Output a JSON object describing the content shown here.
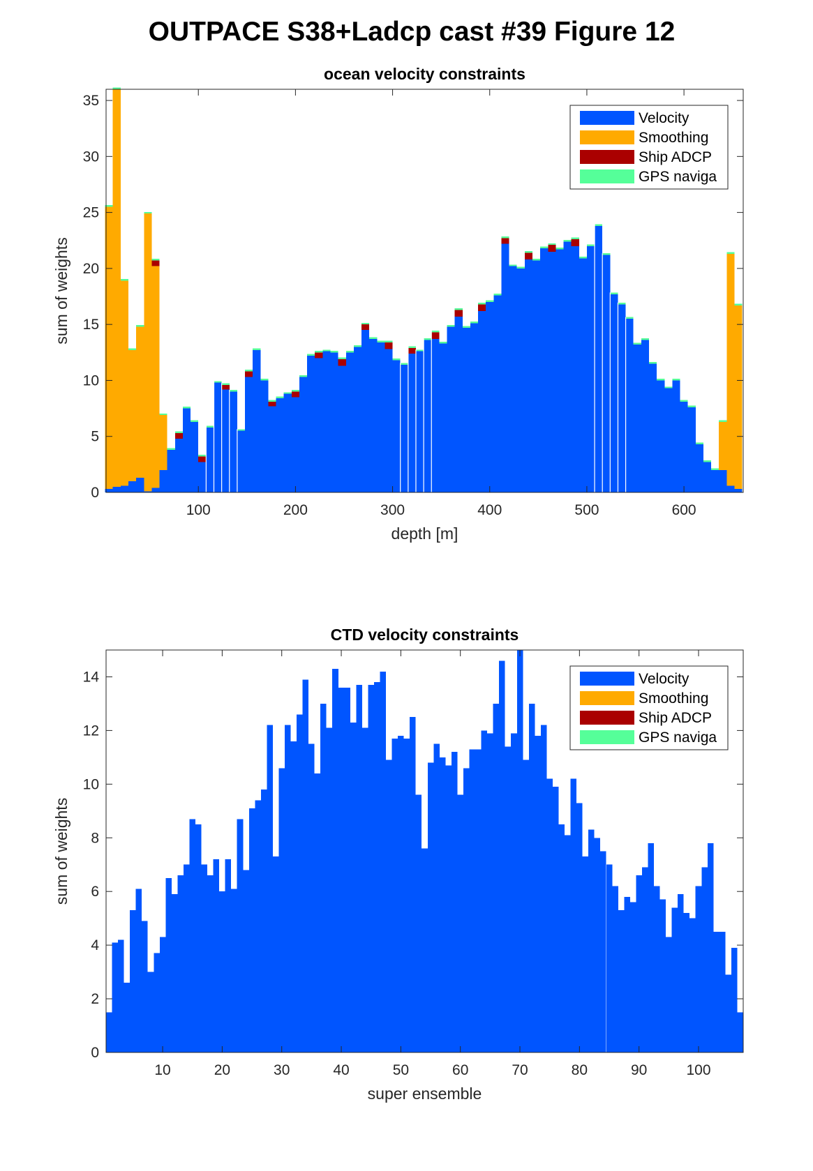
{
  "figure": {
    "title": "OUTPACE S38+Ladcp cast #39  Figure 12"
  },
  "colors": {
    "velocity": "#0055ff",
    "smoothing": "#ffaa00",
    "ship_adcp": "#aa0000",
    "gps_navigation": "#55ff99"
  },
  "chart_data": [
    {
      "type": "bar",
      "stacked": true,
      "title": "ocean velocity constraints",
      "xlabel": "depth [m]",
      "ylabel": "sum of weights",
      "xlim": [
        5,
        661
      ],
      "ylim": [
        0,
        36
      ],
      "xticks": [
        100,
        200,
        300,
        400,
        500,
        600
      ],
      "yticks": [
        0,
        5,
        10,
        15,
        20,
        25,
        30,
        35
      ],
      "legend": {
        "position": "top-right",
        "entries": [
          "Velocity",
          "Smoothing",
          "Ship ADCP",
          "GPS naviga"
        ]
      },
      "x": [
        8,
        16,
        24,
        32,
        40,
        48,
        56,
        64,
        72,
        80,
        88,
        96,
        104,
        112,
        120,
        128,
        136,
        144,
        152,
        160,
        168,
        176,
        184,
        192,
        200,
        208,
        216,
        224,
        232,
        240,
        248,
        256,
        264,
        272,
        280,
        288,
        296,
        304,
        312,
        320,
        328,
        336,
        344,
        352,
        360,
        368,
        376,
        384,
        392,
        400,
        408,
        416,
        424,
        432,
        440,
        448,
        456,
        464,
        472,
        480,
        488,
        496,
        504,
        512,
        520,
        528,
        536,
        544,
        552,
        560,
        568,
        576,
        584,
        592,
        600,
        608,
        616,
        624,
        632,
        640,
        648,
        656
      ],
      "series": [
        {
          "name": "Velocity",
          "values": [
            0.3,
            0.5,
            0.6,
            1.0,
            1.3,
            0.1,
            0.4,
            2.0,
            3.8,
            4.8,
            7.5,
            6.3,
            2.7,
            5.8,
            9.8,
            9.2,
            9.0,
            5.5,
            10.3,
            12.7,
            10.0,
            7.7,
            8.4,
            8.8,
            8.5,
            10.3,
            12.2,
            12.0,
            12.6,
            12.5,
            11.3,
            12.5,
            13.0,
            14.5,
            13.7,
            13.4,
            12.8,
            11.8,
            11.4,
            12.4,
            12.6,
            13.6,
            13.7,
            13.3,
            14.8,
            15.7,
            14.7,
            15.1,
            16.2,
            17.0,
            17.6,
            22.2,
            20.2,
            20.0,
            20.8,
            20.7,
            21.8,
            21.5,
            21.7,
            22.4,
            22.0,
            20.9,
            22.0,
            23.8,
            21.2,
            17.7,
            16.8,
            15.5,
            13.2,
            13.6,
            11.5,
            10.0,
            9.3,
            10.0,
            8.1,
            7.6,
            4.3,
            2.7,
            2.0,
            2.0,
            0.6,
            0.3
          ]
        },
        {
          "name": "Smoothing",
          "values": [
            25.2,
            35.5,
            18.3,
            11.7,
            13.5,
            24.8,
            19.8,
            4.9,
            0,
            0,
            0,
            0,
            0,
            0,
            0,
            0,
            0,
            0,
            0,
            0,
            0,
            0,
            0,
            0,
            0,
            0,
            0,
            0,
            0,
            0,
            0,
            0,
            0,
            0,
            0,
            0,
            0,
            0,
            0,
            0,
            0,
            0,
            0,
            0,
            0,
            0,
            0,
            0,
            0,
            0,
            0,
            0,
            0,
            0,
            0,
            0,
            0,
            0,
            0,
            0,
            0,
            0,
            0,
            0,
            0,
            0,
            0,
            0,
            0,
            0,
            0,
            0,
            0,
            0,
            0,
            0,
            0,
            0,
            0,
            4.3,
            20.7,
            16.4
          ]
        },
        {
          "name": "Ship ADCP",
          "values": [
            0,
            0,
            0,
            0,
            0,
            0,
            0.5,
            0,
            0,
            0.5,
            0,
            0,
            0.5,
            0,
            0,
            0.4,
            0,
            0,
            0.5,
            0,
            0,
            0.4,
            0,
            0,
            0.5,
            0,
            0,
            0.5,
            0,
            0,
            0.6,
            0,
            0,
            0.5,
            0,
            0,
            0.6,
            0,
            0,
            0.5,
            0,
            0,
            0.6,
            0,
            0,
            0.6,
            0,
            0,
            0.6,
            0,
            0,
            0.5,
            0,
            0,
            0.6,
            0,
            0,
            0.6,
            0,
            0,
            0.6,
            0,
            0,
            0,
            0,
            0,
            0,
            0,
            0,
            0,
            0,
            0,
            0,
            0,
            0,
            0,
            0,
            0,
            0,
            0,
            0,
            0
          ]
        },
        {
          "name": "GPS naviga",
          "values": [
            0.15,
            0.15,
            0.15,
            0.15,
            0.15,
            0.15,
            0.15,
            0.15,
            0.15,
            0.15,
            0.15,
            0.15,
            0.15,
            0.15,
            0.15,
            0.15,
            0.15,
            0.15,
            0.15,
            0.15,
            0.15,
            0.15,
            0.15,
            0.15,
            0.15,
            0.15,
            0.15,
            0.15,
            0.15,
            0.15,
            0.15,
            0.15,
            0.15,
            0.15,
            0.15,
            0.15,
            0.15,
            0.15,
            0.15,
            0.15,
            0.15,
            0.15,
            0.15,
            0.15,
            0.15,
            0.15,
            0.15,
            0.15,
            0.15,
            0.15,
            0.15,
            0.15,
            0.15,
            0.15,
            0.15,
            0.15,
            0.15,
            0.15,
            0.15,
            0.15,
            0.15,
            0.15,
            0.15,
            0.15,
            0.15,
            0.15,
            0.15,
            0.15,
            0.15,
            0.15,
            0.15,
            0.15,
            0.15,
            0.15,
            0.15,
            0.15,
            0.15,
            0.15,
            0.15,
            0.15,
            0.15,
            0.15
          ]
        }
      ]
    },
    {
      "type": "bar",
      "stacked": true,
      "title": "CTD velocity constraints",
      "xlabel": "super ensemble",
      "ylabel": "sum of weights",
      "xlim": [
        0.5,
        107.5
      ],
      "ylim": [
        0,
        15
      ],
      "xticks": [
        10,
        20,
        30,
        40,
        50,
        60,
        70,
        80,
        90,
        100
      ],
      "yticks": [
        0,
        2,
        4,
        6,
        8,
        10,
        12,
        14
      ],
      "legend": {
        "position": "top-right",
        "entries": [
          "Velocity",
          "Smoothing",
          "Ship ADCP",
          "GPS naviga"
        ]
      },
      "x_start": 1,
      "series": [
        {
          "name": "Velocity",
          "values": [
            1.5,
            4.1,
            4.2,
            2.6,
            5.3,
            6.1,
            4.9,
            3.0,
            3.7,
            4.3,
            6.5,
            5.9,
            6.6,
            7.0,
            8.7,
            8.5,
            7.0,
            6.6,
            7.2,
            6.0,
            7.2,
            6.1,
            8.7,
            6.8,
            9.1,
            9.4,
            9.8,
            12.2,
            7.3,
            10.6,
            12.2,
            11.6,
            12.6,
            13.9,
            11.5,
            10.4,
            13.0,
            12.1,
            14.3,
            13.6,
            13.6,
            12.3,
            13.7,
            12.1,
            13.7,
            13.8,
            14.2,
            10.9,
            11.7,
            11.8,
            11.7,
            12.5,
            9.6,
            7.6,
            10.8,
            11.5,
            11.0,
            10.7,
            11.2,
            9.6,
            10.6,
            11.3,
            11.3,
            12.0,
            11.9,
            13.0,
            14.6,
            11.4,
            11.9,
            15.0,
            10.9,
            13.0,
            11.8,
            12.2,
            10.2,
            9.9,
            8.5,
            8.1,
            10.2,
            9.3,
            7.3,
            8.3,
            8.0,
            7.5,
            7.0,
            6.2,
            5.3,
            5.8,
            5.6,
            6.6,
            6.9,
            7.8,
            6.2,
            5.7,
            4.3,
            5.4,
            5.9,
            5.2,
            5.0,
            6.2,
            6.9,
            7.8,
            4.5,
            4.5,
            2.9,
            3.9,
            1.5
          ]
        },
        {
          "name": "Smoothing",
          "values": []
        },
        {
          "name": "Ship ADCP",
          "values": []
        },
        {
          "name": "GPS naviga",
          "values": []
        }
      ]
    }
  ]
}
